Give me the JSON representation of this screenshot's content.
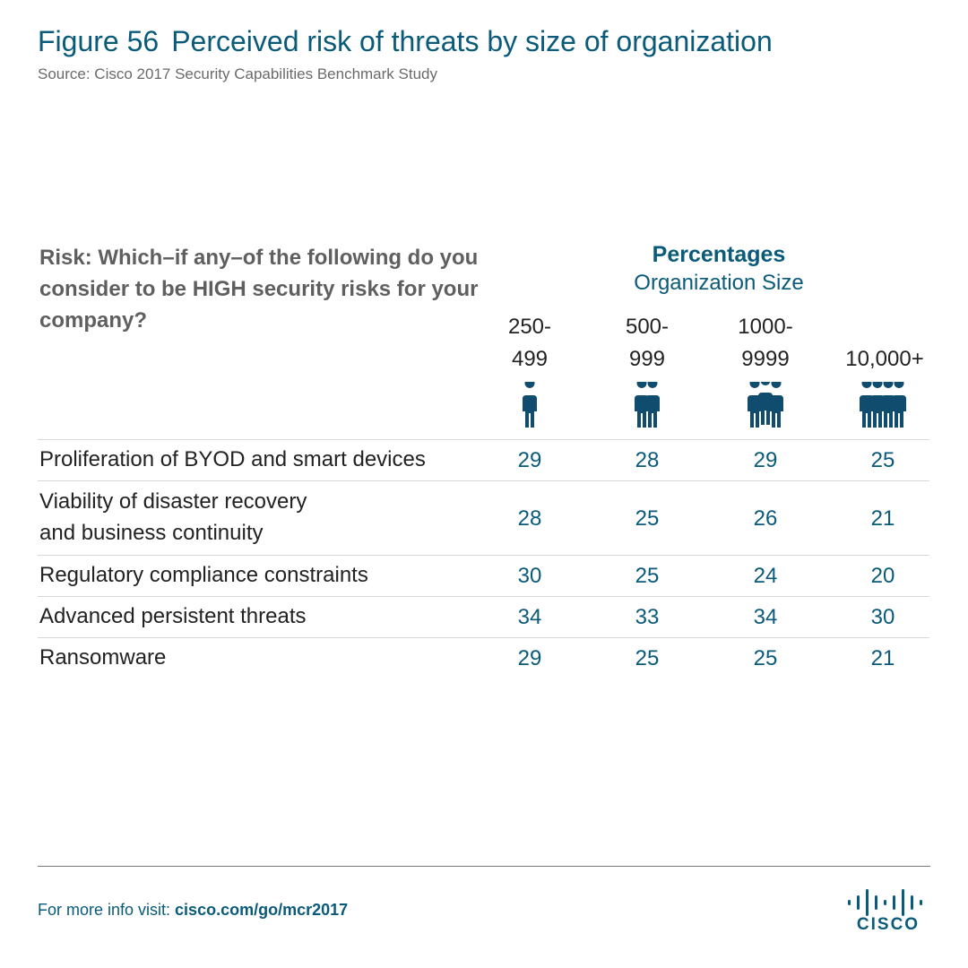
{
  "figure": {
    "number": "Figure 56",
    "title": "Perceived risk of threats by size of organization",
    "source": "Source: Cisco 2017 Security Capabilities Benchmark Study"
  },
  "table": {
    "question": "Risk:  Which–if any–of the following do you consider to be HIGH security risks for your company?",
    "header_primary": "Percentages",
    "header_secondary": "Organization Size",
    "columns": [
      {
        "label": "250-\n499",
        "people": 1
      },
      {
        "label": "500-\n999",
        "people": 2
      },
      {
        "label": "1000-\n9999",
        "people": 3
      },
      {
        "label": "10,000+",
        "people": 4
      }
    ]
  },
  "chart_data": {
    "type": "table",
    "title": "Perceived risk of threats by size of organization",
    "categories": [
      "250-499",
      "500-999",
      "1000-9999",
      "10,000+"
    ],
    "rows": [
      {
        "label": "Proliferation of BYOD and smart devices",
        "values": [
          29,
          28,
          29,
          25
        ]
      },
      {
        "label": "Viability of disaster recovery\nand business continuity",
        "values": [
          28,
          25,
          26,
          21
        ]
      },
      {
        "label": "Regulatory compliance constraints",
        "values": [
          30,
          25,
          24,
          20
        ]
      },
      {
        "label": "Advanced persistent threats",
        "values": [
          34,
          33,
          34,
          30
        ]
      },
      {
        "label": "Ransomware",
        "values": [
          29,
          25,
          25,
          21
        ]
      }
    ]
  },
  "footer": {
    "prefix": "For more info visit: ",
    "link": "cisco.com/go/mcr2017",
    "logo_text": "CISCO"
  },
  "colors": {
    "accent": "#0a5a7a",
    "icon": "#0f4c6e",
    "text": "#222222",
    "muted": "#5f5f5f"
  }
}
